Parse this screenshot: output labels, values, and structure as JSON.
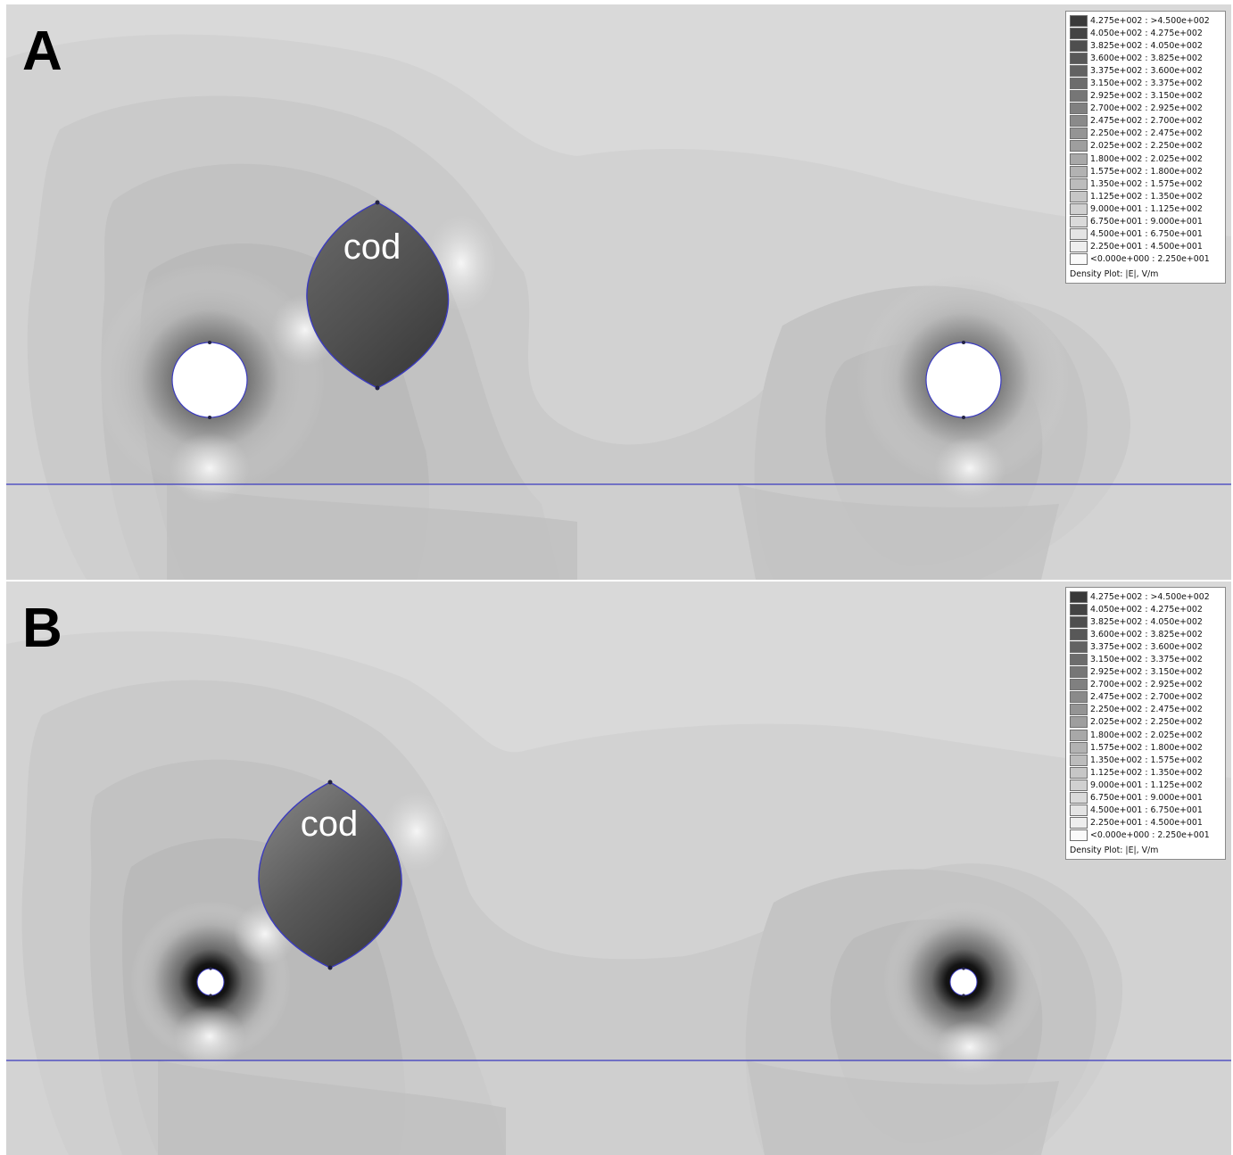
{
  "panels": [
    {
      "letter": "A",
      "fish_label": "cod",
      "legend_title": "Density Plot: |E|, V/m"
    },
    {
      "letter": "B",
      "fish_label": "cod",
      "legend_title": "Density Plot: |E|, V/m"
    }
  ],
  "legend": {
    "entries": [
      "4.275e+002 : >4.500e+002",
      "4.050e+002 : 4.275e+002",
      "3.825e+002 : 4.050e+002",
      "3.600e+002 : 3.825e+002",
      "3.375e+002 : 3.600e+002",
      "3.150e+002 : 3.375e+002",
      "2.925e+002 : 3.150e+002",
      "2.700e+002 : 2.925e+002",
      "2.475e+002 : 2.700e+002",
      "2.250e+002 : 2.475e+002",
      "2.025e+002 : 2.250e+002",
      "1.800e+002 : 2.025e+002",
      "1.575e+002 : 1.800e+002",
      "1.350e+002 : 1.575e+002",
      "1.125e+002 : 1.350e+002",
      "9.000e+001 : 1.125e+002",
      "6.750e+001 : 9.000e+001",
      "4.500e+001 : 6.750e+001",
      "2.250e+001 : 4.500e+001",
      "<0.000e+000 : 2.250e+001"
    ],
    "swatch_colors": [
      "#3a3a3a",
      "#444444",
      "#4e4e4e",
      "#585858",
      "#626262",
      "#6c6c6c",
      "#767676",
      "#808080",
      "#8a8a8a",
      "#949494",
      "#9e9e9e",
      "#a8a8a8",
      "#b2b2b2",
      "#bcbcbc",
      "#c6c6c6",
      "#d0d0d0",
      "#dadada",
      "#e4e4e4",
      "#eeeeee",
      "#fafafa"
    ]
  },
  "colors": {
    "outline": "#3b3bbf",
    "background_field": "#d8d8d8",
    "electrode": "#ffffff"
  }
}
